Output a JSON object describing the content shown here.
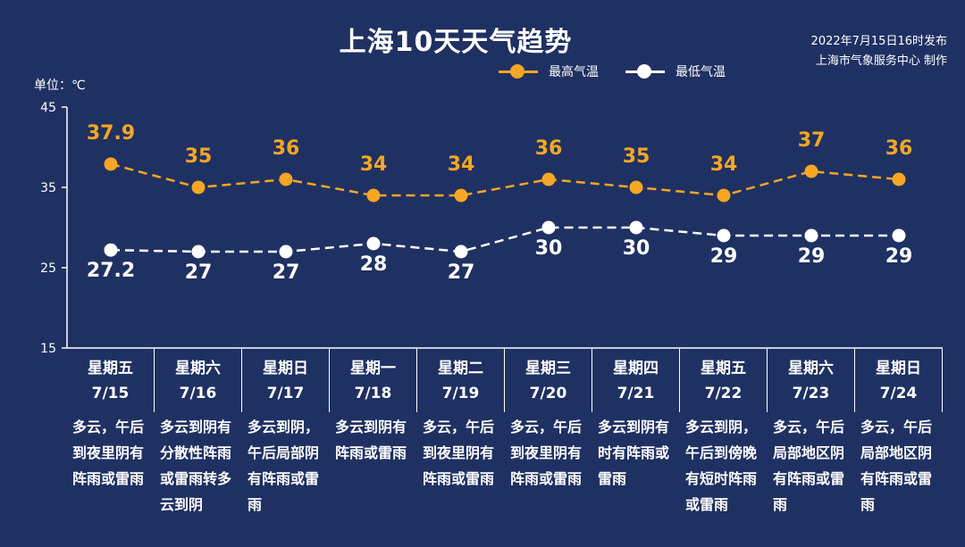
{
  "title": "上海10天天气趋势",
  "publish": {
    "line1": "2022年7月15日16时发布",
    "line2": "上海市气象服务中心 制作"
  },
  "unit_label": "单位：℃",
  "legend": {
    "high": "最高气温",
    "low": "最低气温"
  },
  "colors": {
    "background": "#1f3162",
    "high": "#f5a623",
    "low": "#ffffff"
  },
  "days": [
    {
      "weekday": "星期五",
      "date": "7/15",
      "weather": "多云，午后到夜里阴有阵雨或雷雨"
    },
    {
      "weekday": "星期六",
      "date": "7/16",
      "weather": "多云到阴有分散性阵雨或雷雨转多云到阴"
    },
    {
      "weekday": "星期日",
      "date": "7/17",
      "weather": "多云到阴，午后局部阴有阵雨或雷雨"
    },
    {
      "weekday": "星期一",
      "date": "7/18",
      "weather": "多云到阴有阵雨或雷雨"
    },
    {
      "weekday": "星期二",
      "date": "7/19",
      "weather": "多云，午后到夜里阴有阵雨或雷雨"
    },
    {
      "weekday": "星期三",
      "date": "7/20",
      "weather": "多云，午后到夜里阴有阵雨或雷雨"
    },
    {
      "weekday": "星期四",
      "date": "7/21",
      "weather": "多云到阴有时有阵雨或雷雨"
    },
    {
      "weekday": "星期五",
      "date": "7/22",
      "weather": "多云到阴，午后到傍晚有短时阵雨或雷雨"
    },
    {
      "weekday": "星期六",
      "date": "7/23",
      "weather": "多云，午后局部地区阴有阵雨或雷雨"
    },
    {
      "weekday": "星期日",
      "date": "7/24",
      "weather": "多云，午后局部地区阴有阵雨或雷雨"
    }
  ],
  "chart_data": {
    "type": "line",
    "title": "上海10天天气趋势",
    "ylabel": "单位：℃",
    "ylim": [
      15,
      45
    ],
    "yticks": [
      15,
      25,
      35,
      45
    ],
    "categories": [
      "7/15",
      "7/16",
      "7/17",
      "7/18",
      "7/19",
      "7/20",
      "7/21",
      "7/22",
      "7/23",
      "7/24"
    ],
    "series": [
      {
        "name": "最高气温",
        "values": [
          37.9,
          35,
          36,
          34,
          34,
          36,
          35,
          34,
          37,
          36
        ],
        "labels": [
          "37.9",
          "35",
          "36",
          "34",
          "34",
          "36",
          "35",
          "34",
          "37",
          "36"
        ]
      },
      {
        "name": "最低气温",
        "values": [
          27.2,
          27,
          27,
          28,
          27,
          30,
          30,
          29,
          29,
          29
        ],
        "labels": [
          "27.2",
          "27",
          "27",
          "28",
          "27",
          "30",
          "30",
          "29",
          "29",
          "29"
        ]
      }
    ],
    "grid": false,
    "legend_position": "top"
  }
}
